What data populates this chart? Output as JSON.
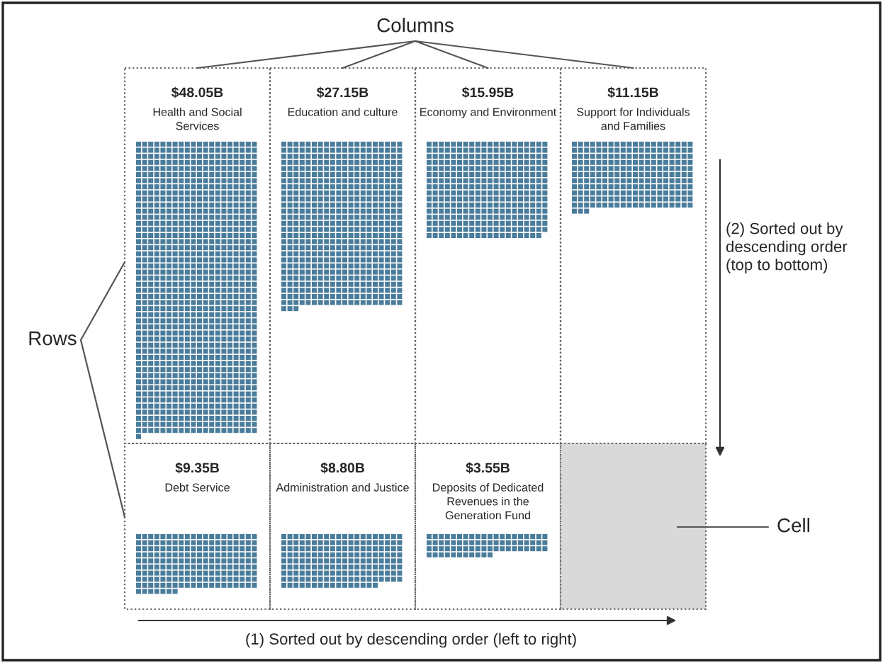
{
  "chart_data": {
    "type": "other",
    "categories": [
      "Health and Social\nServices",
      "Education and culture",
      "Economy and Environment",
      "Support for Individuals\nand Families",
      "Debt Service",
      "Administration and Justice",
      "Deposits of Dedicated\nRevenues in the\nGeneration Fund"
    ],
    "values": [
      48.05,
      27.15,
      15.95,
      11.15,
      9.35,
      8.8,
      3.55
    ],
    "value_labels": [
      "$48.05B",
      "$27.15B",
      "$15.95B",
      "$11.15B",
      "$9.35B",
      "$8.80B",
      "$3.55B"
    ],
    "color": "#4a7c9b",
    "annotations": [
      "Columns",
      "Rows",
      "(2) Sorted out by\ndescending order\n(top to bottom)",
      "Cell",
      "(1) Sorted out by descending order (left to right)"
    ]
  }
}
